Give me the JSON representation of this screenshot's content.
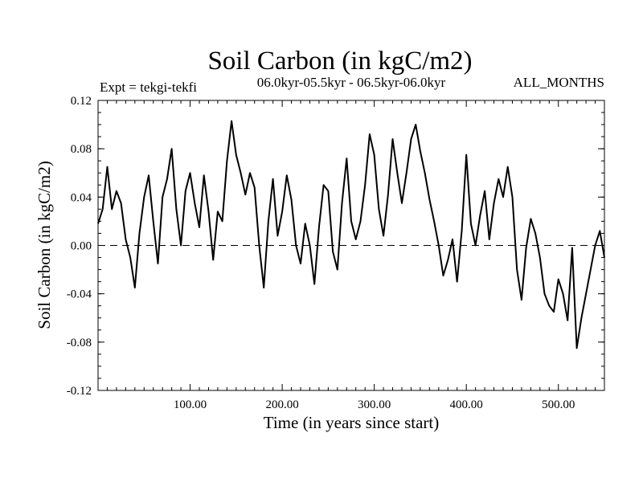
{
  "chart_data": {
    "type": "line",
    "title": "Soil Carbon (in kgC/m2)",
    "subtitle": "06.0kyr-05.5kyr - 06.5kyr-06.0kyr",
    "left_note": "Expt = tekgi-tekfi",
    "right_note": "ALL_MONTHS",
    "xlabel": "Time (in years since start)",
    "ylabel": "Soil Carbon (in kgC/m2)",
    "xlim": [
      0,
      550
    ],
    "ylim": [
      -0.12,
      0.12
    ],
    "x_ticks": [
      100,
      200,
      300,
      400,
      500
    ],
    "x_tick_labels": [
      "100.00",
      "200.00",
      "300.00",
      "400.00",
      "500.00"
    ],
    "y_ticks": [
      0.12,
      0.08,
      0.04,
      0.0,
      -0.04,
      -0.08,
      -0.12
    ],
    "y_tick_labels": [
      "0.12",
      "0.08",
      "0.04",
      "0.00",
      "-0.04",
      "-0.08",
      "-0.12"
    ],
    "reference_line": 0.0,
    "series": [
      {
        "name": "tekgi-tekfi",
        "color": "#000000",
        "x": [
          0,
          5,
          10,
          15,
          20,
          25,
          30,
          35,
          40,
          45,
          50,
          55,
          60,
          65,
          70,
          75,
          80,
          85,
          90,
          95,
          100,
          105,
          110,
          115,
          120,
          125,
          130,
          135,
          140,
          145,
          150,
          155,
          160,
          165,
          170,
          175,
          180,
          185,
          190,
          195,
          200,
          205,
          210,
          215,
          220,
          225,
          230,
          235,
          240,
          245,
          250,
          255,
          260,
          265,
          270,
          275,
          280,
          285,
          290,
          295,
          300,
          305,
          310,
          315,
          320,
          325,
          330,
          335,
          340,
          345,
          350,
          355,
          360,
          365,
          370,
          375,
          380,
          385,
          390,
          395,
          400,
          405,
          410,
          415,
          420,
          425,
          430,
          435,
          440,
          445,
          450,
          455,
          460,
          465,
          470,
          475,
          480,
          485,
          490,
          495,
          500,
          505,
          510,
          515,
          520,
          525,
          530,
          535,
          540,
          545,
          550
        ],
        "values": [
          0.018,
          0.03,
          0.065,
          0.03,
          0.045,
          0.035,
          0.005,
          -0.01,
          -0.035,
          0.01,
          0.04,
          0.058,
          0.02,
          -0.015,
          0.04,
          0.055,
          0.08,
          0.03,
          0.0,
          0.045,
          0.06,
          0.035,
          0.015,
          0.058,
          0.028,
          -0.012,
          0.028,
          0.02,
          0.07,
          0.103,
          0.075,
          0.06,
          0.042,
          0.06,
          0.048,
          0.0,
          -0.035,
          0.02,
          0.055,
          0.008,
          0.028,
          0.058,
          0.038,
          0.0,
          -0.015,
          0.018,
          0.0,
          -0.032,
          0.015,
          0.05,
          0.045,
          -0.005,
          -0.02,
          0.035,
          0.072,
          0.02,
          0.005,
          0.02,
          0.05,
          0.092,
          0.075,
          0.03,
          0.008,
          0.042,
          0.088,
          0.06,
          0.035,
          0.06,
          0.088,
          0.1,
          0.078,
          0.06,
          0.038,
          0.02,
          0.0,
          -0.025,
          -0.012,
          0.005,
          -0.03,
          0.012,
          0.075,
          0.018,
          0.0,
          0.025,
          0.045,
          0.005,
          0.035,
          0.055,
          0.04,
          0.065,
          0.04,
          -0.02,
          -0.045,
          -0.002,
          0.022,
          0.01,
          -0.01,
          -0.04,
          -0.05,
          -0.055,
          -0.028,
          -0.04,
          -0.062,
          -0.002,
          -0.085,
          -0.06,
          -0.04,
          -0.02,
          0.0,
          0.012,
          -0.01
        ]
      }
    ]
  }
}
